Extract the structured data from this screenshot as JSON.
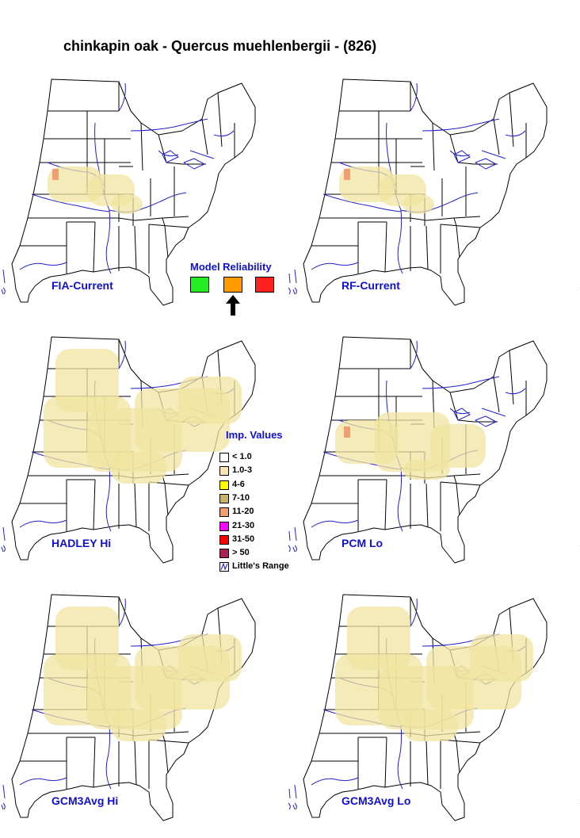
{
  "title": "chinkapin oak - Quercus muehlenbergii - (826)",
  "maps": [
    {
      "label": "FIA-Current",
      "level": "low"
    },
    {
      "label": "RF-Current",
      "level": "low"
    },
    {
      "label": "HADLEY Hi",
      "level": "high"
    },
    {
      "label": "PCM Lo",
      "level": "mid"
    },
    {
      "label": "GCM3Avg Hi",
      "level": "high"
    },
    {
      "label": "GCM3Avg Lo",
      "level": "high"
    }
  ],
  "model_reliability": {
    "title": "Model Reliability",
    "levels": [
      {
        "name": "high",
        "color": "#22ee22"
      },
      {
        "name": "medium",
        "color": "#ff9900"
      },
      {
        "name": "low",
        "color": "#ff2020"
      }
    ],
    "selected": "medium"
  },
  "legend": {
    "title": "Imp. Values",
    "items": [
      {
        "label": "< 1.0",
        "color": "#ffffff"
      },
      {
        "label": "1.0-3",
        "color": "#f6e6b4"
      },
      {
        "label": "4-6",
        "color": "#ffff00"
      },
      {
        "label": "7-10",
        "color": "#c8b468"
      },
      {
        "label": "11-20",
        "color": "#f0a070"
      },
      {
        "label": "21-30",
        "color": "#ff00ff"
      },
      {
        "label": "31-50",
        "color": "#ff0000"
      },
      {
        "label": "> 50",
        "color": "#aa2255"
      },
      {
        "label": "Little's Range",
        "color": "#1010d0"
      }
    ]
  },
  "colors": {
    "boundary": "#000000",
    "river": "#2222cc",
    "habitat": "#f0e4a0",
    "accent": "#1010d0"
  }
}
